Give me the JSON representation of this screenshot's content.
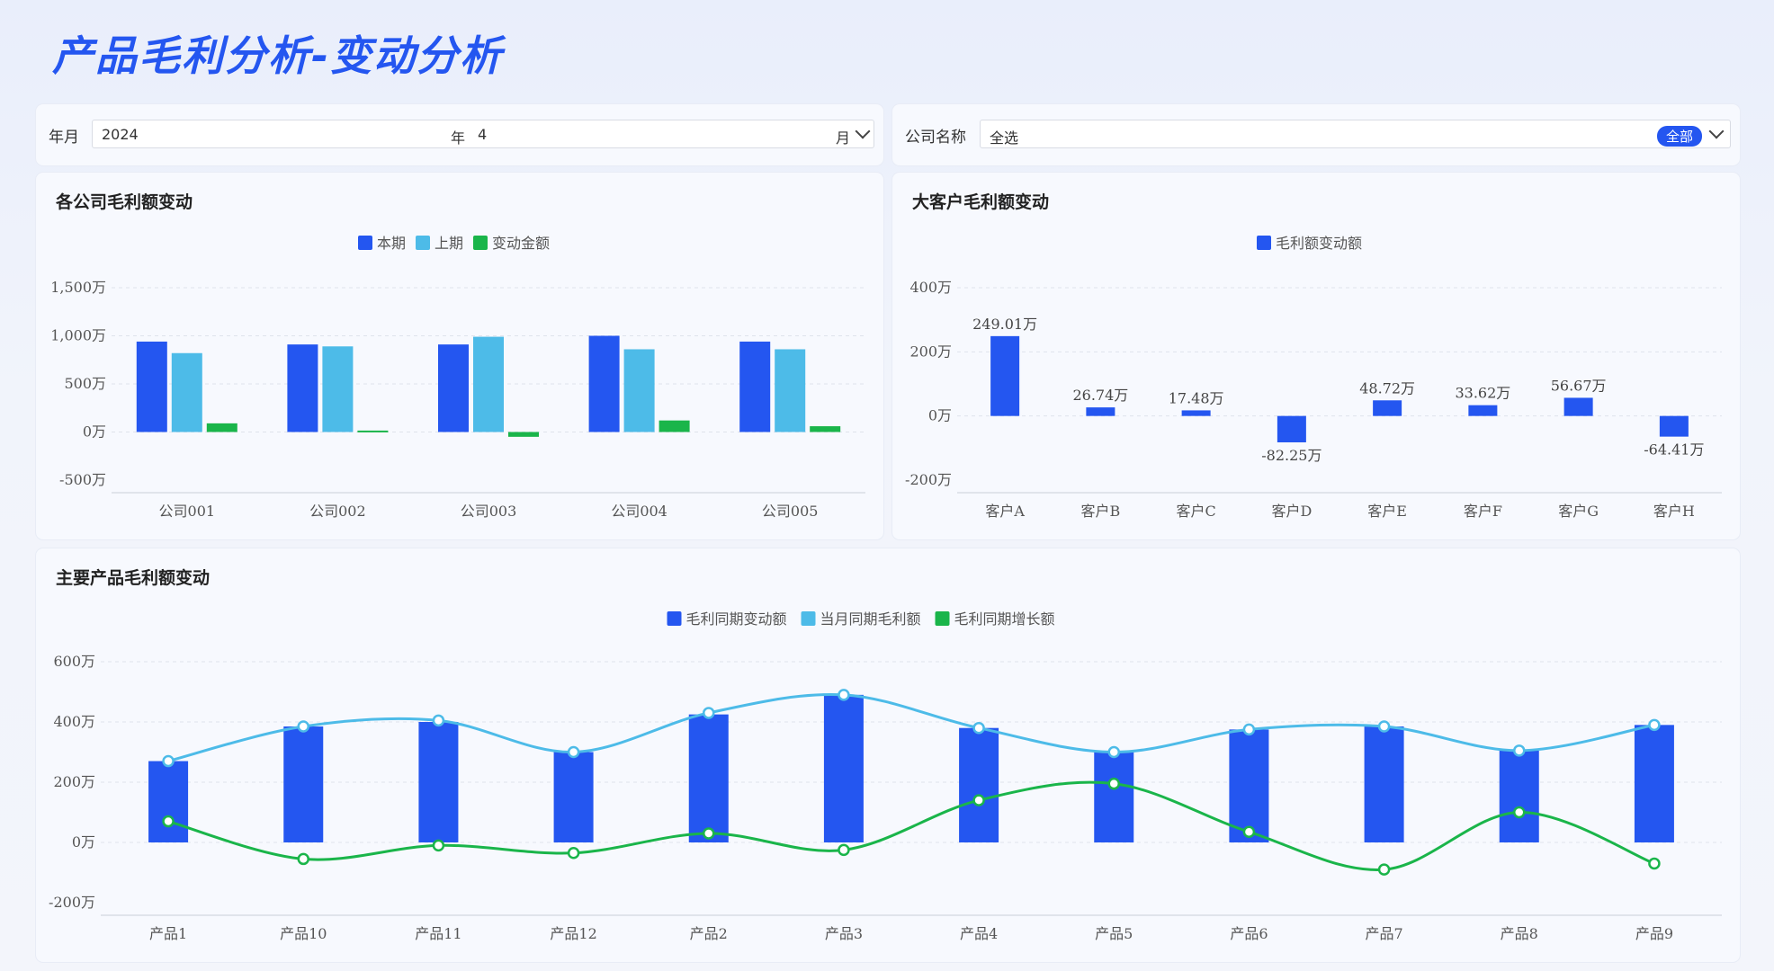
{
  "page_title": "产品毛利分析-变动分析",
  "filters": {
    "year_month_label": "年月",
    "year_value": "2024",
    "year_suffix": "年",
    "month_value": "4",
    "month_suffix": "月",
    "company_label": "公司名称",
    "company_value": "全选",
    "company_badge": "全部"
  },
  "colors": {
    "blue": "#2456f0",
    "light_blue": "#4dbbe8",
    "green": "#1ab54a"
  },
  "chart_data": [
    {
      "type": "bar",
      "title": "各公司毛利额变动",
      "categories": [
        "公司001",
        "公司002",
        "公司003",
        "公司004",
        "公司005"
      ],
      "series": [
        {
          "name": "本期",
          "values": [
            940,
            910,
            910,
            1000,
            940
          ]
        },
        {
          "name": "上期",
          "values": [
            820,
            890,
            990,
            860,
            860
          ]
        },
        {
          "name": "变动金额",
          "values": [
            90,
            15,
            -50,
            120,
            60
          ]
        }
      ],
      "yticks": [
        "1,500万",
        "1,000万",
        "500万",
        "0万",
        "-500万"
      ],
      "ylim": [
        -500,
        1500
      ],
      "legend": "top-center",
      "grid": true
    },
    {
      "type": "bar",
      "title": "大客户毛利额变动",
      "categories": [
        "客户A",
        "客户B",
        "客户C",
        "客户D",
        "客户E",
        "客户F",
        "客户G",
        "客户H"
      ],
      "series": [
        {
          "name": "毛利额变动额",
          "values": [
            249.01,
            26.74,
            17.48,
            -82.25,
            48.72,
            33.62,
            56.67,
            -64.41
          ]
        }
      ],
      "data_labels": [
        "249.01万",
        "26.74万",
        "17.48万",
        "-82.25万",
        "48.72万",
        "33.62万",
        "56.67万",
        "-64.41万"
      ],
      "yticks": [
        "400万",
        "200万",
        "0万",
        "-200万"
      ],
      "ylim": [
        -200,
        400
      ],
      "legend": "top-center",
      "grid": true
    },
    {
      "type": "bar",
      "title": "主要产品毛利额变动",
      "categories": [
        "产品1",
        "产品10",
        "产品11",
        "产品12",
        "产品2",
        "产品3",
        "产品4",
        "产品5",
        "产品6",
        "产品7",
        "产品8",
        "产品9"
      ],
      "series": [
        {
          "name": "毛利同期变动额",
          "type": "bar",
          "values": [
            270,
            385,
            400,
            300,
            425,
            490,
            380,
            300,
            375,
            385,
            305,
            390
          ]
        },
        {
          "name": "当月同期毛利额",
          "type": "line",
          "values": [
            270,
            385,
            405,
            300,
            430,
            490,
            380,
            300,
            375,
            385,
            305,
            390
          ]
        },
        {
          "name": "毛利同期增长额",
          "type": "line",
          "values": [
            70,
            -55,
            -10,
            -35,
            30,
            -25,
            140,
            195,
            35,
            -90,
            100,
            -70
          ]
        }
      ],
      "yticks": [
        "600万",
        "400万",
        "200万",
        "0万",
        "-200万"
      ],
      "ylim": [
        -200,
        600
      ],
      "legend": "top-center",
      "grid": true
    }
  ]
}
